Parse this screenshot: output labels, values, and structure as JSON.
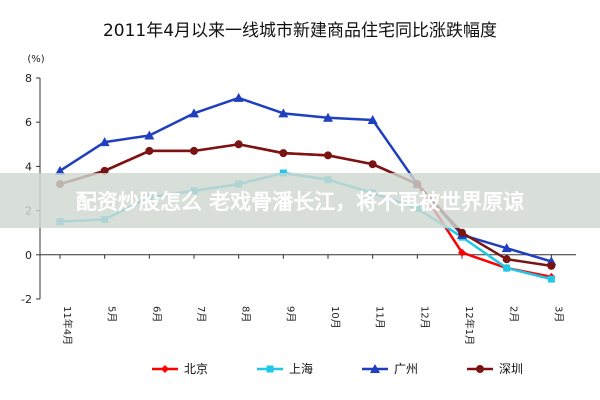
{
  "chart_data": {
    "type": "line",
    "title": "2011年4月以来一线城市新建商品住宅同比涨跌幅度",
    "ylabel": "(%)",
    "xlabel": "",
    "ylim": [
      -2,
      8
    ],
    "yticks": [
      -2,
      0,
      2,
      4,
      6,
      8
    ],
    "grid": false,
    "legend": "bottom",
    "categories": [
      "11年4月",
      "5月",
      "6月",
      "7月",
      "8月",
      "9月",
      "10月",
      "11月",
      "12月",
      "12年1月",
      "2月",
      "3月"
    ],
    "series": [
      {
        "name": "北京",
        "color": "#ff0000",
        "marker": "diamond",
        "values": [
          3.2,
          3.8,
          4.7,
          4.7,
          5.0,
          4.6,
          4.5,
          4.1,
          3.2,
          0.1,
          -0.6,
          -1.0
        ]
      },
      {
        "name": "上海",
        "color": "#1ec8e6",
        "marker": "square",
        "values": [
          1.5,
          1.6,
          2.6,
          2.9,
          3.2,
          3.7,
          3.4,
          2.8,
          2.1,
          0.8,
          -0.6,
          -1.1
        ]
      },
      {
        "name": "广州",
        "color": "#1f3fbf",
        "marker": "triangle",
        "values": [
          3.8,
          5.1,
          5.4,
          6.4,
          7.1,
          6.4,
          6.2,
          6.1,
          3.2,
          0.9,
          0.3,
          -0.3
        ]
      },
      {
        "name": "深圳",
        "color": "#7a1414",
        "marker": "circle",
        "values": [
          3.2,
          3.8,
          4.7,
          4.7,
          5.0,
          4.6,
          4.5,
          4.1,
          3.2,
          1.0,
          -0.2,
          -0.5
        ]
      }
    ]
  },
  "overlay": {
    "banner_text": "配资炒股怎么 老戏骨潘长江，将不再被世界原谅",
    "banner_color": "#cfd7cf"
  }
}
